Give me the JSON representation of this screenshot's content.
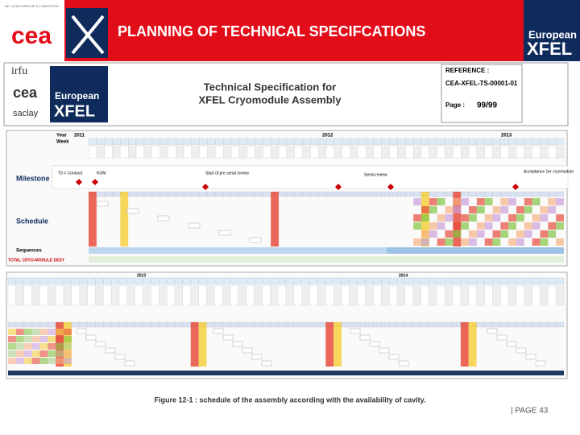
{
  "header": {
    "title": "PLANNING OF TECHNICAL SPECIFCATIONS",
    "left_logo": "cea",
    "left_logo_top": "DE LA RECHERCHE À L'INDUSTRIE",
    "right_logo_line1": "European",
    "right_logo_line2": "XFEL"
  },
  "document": {
    "logos": [
      "irfu",
      "cea",
      "saclay"
    ],
    "xfel_line1": "European",
    "xfel_line2": "XFEL",
    "title_line1": "Technical Specification for",
    "title_line2": "XFEL Cryomodule Assembly",
    "reference_label": "REFERENCE :",
    "reference": "CEA-XFEL-TS-00001-01",
    "page_label": "Page :",
    "page": "99/99"
  },
  "schedule": {
    "year_label": "Year",
    "week_label": "Week",
    "years": [
      "2011",
      "2012",
      "2013",
      "2014"
    ],
    "rows": [
      "Milestone",
      "Schedule",
      "Sequences",
      "TOTAL CRYO-MODULE DESY"
    ],
    "milestones": [
      "T0 = Contract",
      "KOM",
      "Start of pre serial review",
      "Serial review",
      "Acceptance 1er cryomodule"
    ]
  },
  "caption": "Figure 12-1 : schedule of the assembly according with the availability of cavity.",
  "footer": "| PAGE 43"
}
